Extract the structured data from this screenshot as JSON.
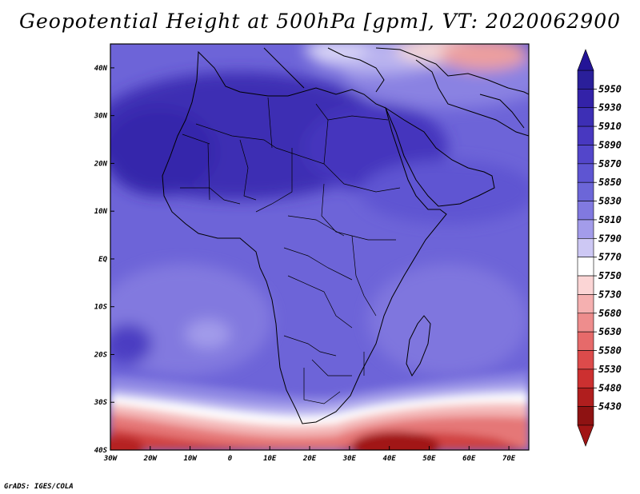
{
  "title": "Geopotential Height at 500hPa [gpm], VT: 2020062900",
  "footer": "GrADS: IGES/COLA",
  "map": {
    "lon_range": [
      -30,
      75
    ],
    "lat_range": [
      -40,
      45
    ],
    "lon_ticks": [
      {
        "value": -30,
        "label": "30W"
      },
      {
        "value": -20,
        "label": "20W"
      },
      {
        "value": -10,
        "label": "10W"
      },
      {
        "value": 0,
        "label": "0"
      },
      {
        "value": 10,
        "label": "10E"
      },
      {
        "value": 20,
        "label": "20E"
      },
      {
        "value": 30,
        "label": "30E"
      },
      {
        "value": 40,
        "label": "40E"
      },
      {
        "value": 50,
        "label": "50E"
      },
      {
        "value": 60,
        "label": "60E"
      },
      {
        "value": 70,
        "label": "70E"
      }
    ],
    "lat_ticks": [
      {
        "value": 40,
        "label": "40N"
      },
      {
        "value": 30,
        "label": "30N"
      },
      {
        "value": 20,
        "label": "20N"
      },
      {
        "value": 10,
        "label": "10N"
      },
      {
        "value": 0,
        "label": "EQ"
      },
      {
        "value": -10,
        "label": "10S"
      },
      {
        "value": -20,
        "label": "20S"
      },
      {
        "value": -30,
        "label": "30S"
      },
      {
        "value": -40,
        "label": "40S"
      }
    ]
  },
  "colorbar": {
    "labels": [
      "5950",
      "5930",
      "5910",
      "5890",
      "5870",
      "5850",
      "5830",
      "5810",
      "5790",
      "5770",
      "5750",
      "5730",
      "5680",
      "5630",
      "5580",
      "5530",
      "5480",
      "5430"
    ],
    "colors": [
      "#2a1f9a",
      "#3322a8",
      "#3d2fb5",
      "#4838c0",
      "#5346ca",
      "#5e55d2",
      "#6c66d8",
      "#8179e0",
      "#a39cea",
      "#cdc8f4",
      "#ffffff",
      "#fbd5d5",
      "#f5b0b0",
      "#ee8d8d",
      "#e66a6a",
      "#dc4b4b",
      "#cc3030",
      "#b01e1e",
      "#8e1212"
    ],
    "top_color": "#231497",
    "bottom_color": "#a11515"
  }
}
